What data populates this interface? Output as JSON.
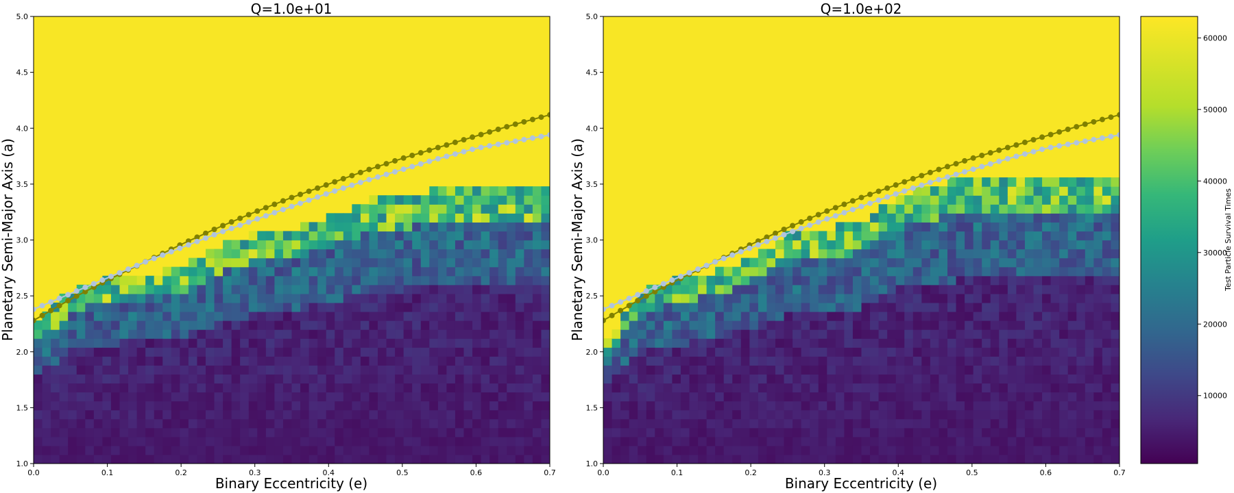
{
  "figure": {
    "colorbar": {
      "label": "Test Particle Survival Times",
      "ticks": [
        10000,
        20000,
        30000,
        40000,
        50000,
        60000
      ],
      "range": [
        500,
        63000
      ],
      "colormap": "viridis"
    }
  },
  "chart_data": [
    {
      "type": "heatmap",
      "title": "Q=1.0e+01",
      "xlabel": "Binary Eccentricity (e)",
      "ylabel": "Planetary Semi-Major Axis (a)",
      "xlim": [
        0.0,
        0.7
      ],
      "ylim": [
        1.0,
        5.0
      ],
      "x_ticks": [
        "0.0",
        "0.1",
        "0.2",
        "0.3",
        "0.4",
        "0.5",
        "0.6",
        "0.7"
      ],
      "y_ticks": [
        "1.0",
        "1.5",
        "2.0",
        "2.5",
        "3.0",
        "3.5",
        "4.0",
        "4.5",
        "5.0"
      ],
      "grid": false,
      "heatmap_description": "Survival time on a grid of eccentricity (0-0.7) vs semi-major axis (1-5). Stable (yellow, ~63000) above an instability boundary; unstable (dark purple, a few thousand) at small a; transitional green/teal band near the boundary.",
      "stable_boundary": {
        "e": [
          0.0,
          0.05,
          0.1,
          0.15,
          0.2,
          0.25,
          0.3,
          0.35,
          0.4,
          0.45,
          0.5,
          0.55,
          0.6,
          0.65,
          0.7
        ],
        "a": [
          2.2,
          2.55,
          2.65,
          2.7,
          2.75,
          2.95,
          3.05,
          3.1,
          3.2,
          3.35,
          3.4,
          3.45,
          3.45,
          3.45,
          3.45
        ]
      },
      "stable_value": 62500,
      "unstable_value": 3000,
      "curves": [
        {
          "color": "#808000",
          "marker": "circle",
          "e": [
            0.0,
            0.05,
            0.1,
            0.15,
            0.2,
            0.25,
            0.3,
            0.35,
            0.4,
            0.45,
            0.5,
            0.55,
            0.6,
            0.65,
            0.7
          ],
          "a": [
            2.28,
            2.47,
            2.64,
            2.8,
            2.96,
            3.11,
            3.25,
            3.38,
            3.5,
            3.62,
            3.73,
            3.83,
            3.93,
            4.03,
            4.12
          ]
        },
        {
          "color": "#b0c4de",
          "marker": "circle",
          "e": [
            0.0,
            0.05,
            0.1,
            0.15,
            0.2,
            0.25,
            0.3,
            0.35,
            0.4,
            0.45,
            0.5,
            0.55,
            0.6,
            0.65,
            0.7
          ],
          "a": [
            2.38,
            2.52,
            2.66,
            2.8,
            2.93,
            3.06,
            3.18,
            3.3,
            3.42,
            3.53,
            3.63,
            3.73,
            3.82,
            3.88,
            3.94
          ]
        }
      ]
    },
    {
      "type": "heatmap",
      "title": "Q=1.0e+02",
      "xlabel": "Binary Eccentricity (e)",
      "ylabel": "Planetary Semi-Major Axis (a)",
      "xlim": [
        0.0,
        0.7
      ],
      "ylim": [
        1.0,
        5.0
      ],
      "x_ticks": [
        "0.0",
        "0.1",
        "0.2",
        "0.3",
        "0.4",
        "0.5",
        "0.6",
        "0.7"
      ],
      "y_ticks": [
        "1.0",
        "1.5",
        "2.0",
        "2.5",
        "3.0",
        "3.5",
        "4.0",
        "4.5",
        "5.0"
      ],
      "grid": false,
      "heatmap_description": "Same layout as the first panel, with a slightly higher and more extended transitional band.",
      "stable_boundary": {
        "e": [
          0.0,
          0.05,
          0.1,
          0.15,
          0.2,
          0.25,
          0.3,
          0.35,
          0.4,
          0.45,
          0.5,
          0.55,
          0.6,
          0.65,
          0.7
        ],
        "a": [
          2.05,
          2.55,
          2.65,
          2.7,
          2.85,
          3.05,
          3.1,
          3.15,
          3.4,
          3.5,
          3.55,
          3.55,
          3.55,
          3.55,
          3.55
        ]
      },
      "stable_value": 62500,
      "unstable_value": 3000,
      "curves": [
        {
          "color": "#808000",
          "marker": "circle",
          "e": [
            0.0,
            0.05,
            0.1,
            0.15,
            0.2,
            0.25,
            0.3,
            0.35,
            0.4,
            0.45,
            0.5,
            0.55,
            0.6,
            0.65,
            0.7
          ],
          "a": [
            2.28,
            2.47,
            2.64,
            2.8,
            2.96,
            3.11,
            3.25,
            3.38,
            3.5,
            3.62,
            3.73,
            3.83,
            3.93,
            4.03,
            4.12
          ]
        },
        {
          "color": "#b0c4de",
          "marker": "circle",
          "e": [
            0.0,
            0.05,
            0.1,
            0.15,
            0.2,
            0.25,
            0.3,
            0.35,
            0.4,
            0.45,
            0.5,
            0.55,
            0.6,
            0.65,
            0.7
          ],
          "a": [
            2.38,
            2.52,
            2.66,
            2.8,
            2.93,
            3.06,
            3.18,
            3.3,
            3.42,
            3.53,
            3.63,
            3.73,
            3.82,
            3.88,
            3.94
          ]
        }
      ]
    }
  ]
}
